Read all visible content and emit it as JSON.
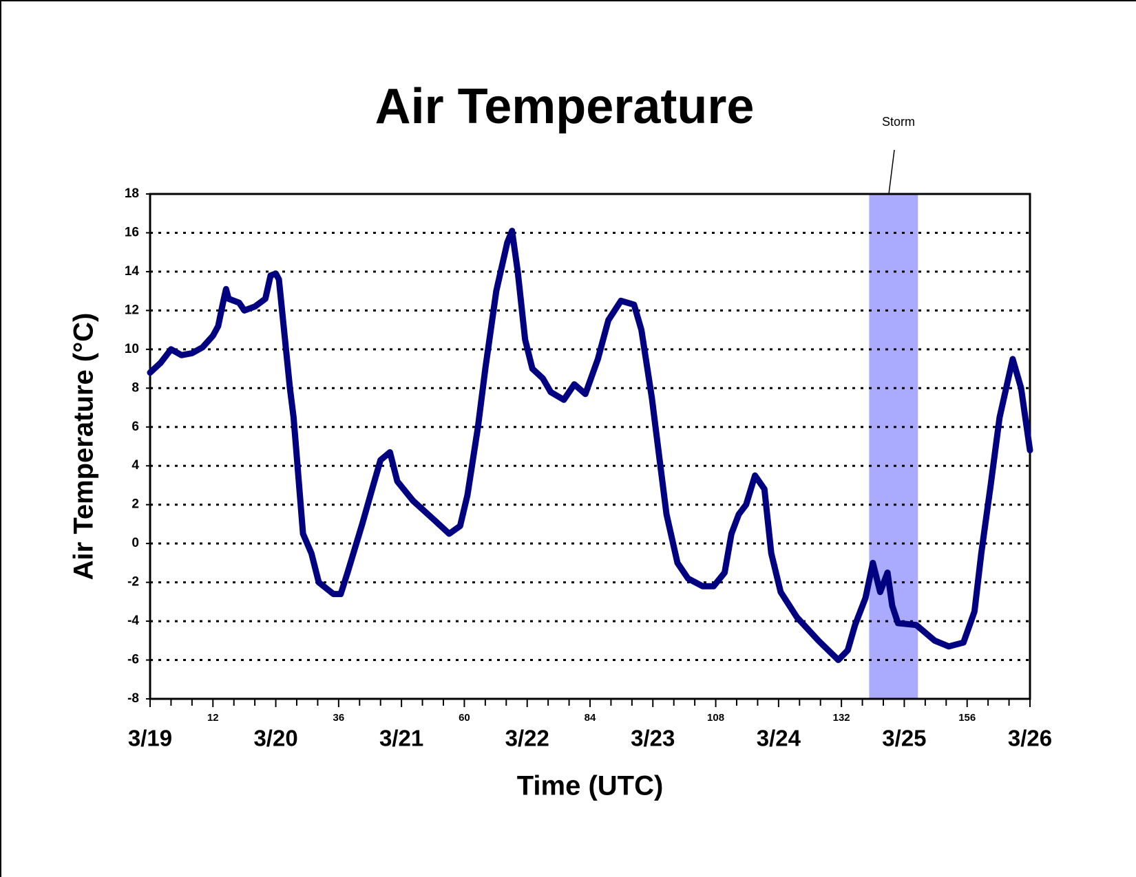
{
  "chart_data": {
    "type": "line",
    "title": "Air Temperature",
    "xlabel": "Time (UTC)",
    "ylabel": "Air Temperature (°C)",
    "color": "#000080",
    "x": [
      0,
      2,
      4,
      6,
      8,
      10,
      12,
      13,
      14,
      14.5,
      15,
      17,
      18,
      20,
      22,
      23,
      24,
      24.6,
      26.7,
      27.4,
      28,
      29.2,
      30.8,
      32.2,
      35,
      36.4,
      37.7,
      40.5,
      42.6,
      44,
      45.8,
      47.2,
      50.2,
      54.3,
      57.1,
      59.2,
      60.6,
      62.6,
      64,
      66.1,
      68.2,
      69.1,
      70.2,
      71.6,
      73,
      75,
      76.5,
      79,
      81,
      83.1,
      85.5,
      87.5,
      89.9,
      92.4,
      93.8,
      95.8,
      97.2,
      98.6,
      100.7,
      102.7,
      105.5,
      107.6,
      109.7,
      111,
      112.4,
      113.8,
      115.5,
      117.3,
      118.6,
      120.4,
      123.5,
      127.6,
      131.4,
      133.2,
      134.6,
      136.6,
      138,
      139.4,
      140.8,
      141.7,
      142.8,
      146.3,
      149.8,
      152.5,
      155.3,
      157.4,
      158.7,
      160.5,
      162.2,
      164.7,
      166.3,
      168
    ],
    "values": [
      8.8,
      9.3,
      10.0,
      9.7,
      9.8,
      10.1,
      10.7,
      11.2,
      12.5,
      13.1,
      12.6,
      12.4,
      12.0,
      12.2,
      12.6,
      13.8,
      13.9,
      13.6,
      8,
      6.5,
      4.5,
      0.5,
      -0.5,
      -2,
      -2.6,
      -2.6,
      -1.5,
      1,
      3,
      4.3,
      4.7,
      3.2,
      2.2,
      1.2,
      0.5,
      0.9,
      2.5,
      6,
      9,
      13,
      15.5,
      16.1,
      14,
      10.5,
      9,
      8.5,
      7.8,
      7.4,
      8.2,
      7.7,
      9.5,
      11.5,
      12.5,
      12.3,
      11,
      7.5,
      4.5,
      1.5,
      -1,
      -1.8,
      -2.2,
      -2.2,
      -1.5,
      0.5,
      1.5,
      2,
      3.5,
      2.8,
      -0.5,
      -2.5,
      -3.8,
      -5,
      -6,
      -5.5,
      -4.2,
      -2.8,
      -1,
      -2.5,
      -1.5,
      -3.2,
      -4.1,
      -4.2,
      -5,
      -5.3,
      -5.1,
      -3.5,
      -0.5,
      3,
      6.5,
      9.5,
      8,
      4.8
    ],
    "xlim": [
      0,
      168
    ],
    "xticks": [
      {
        "value": 0,
        "label": "3/19"
      },
      {
        "value": 24,
        "label": "3/20"
      },
      {
        "value": 48,
        "label": "3/21"
      },
      {
        "value": 72,
        "label": "3/22"
      },
      {
        "value": 96,
        "label": "3/23"
      },
      {
        "value": 120,
        "label": "3/24"
      },
      {
        "value": 144,
        "label": "3/25"
      },
      {
        "value": 168,
        "label": "3/26"
      }
    ],
    "xticks_minor": [
      12,
      36,
      60,
      84,
      108,
      132,
      156
    ],
    "xticks_unlabeled": [
      4,
      8,
      16,
      20,
      28,
      32,
      40,
      44,
      52,
      56,
      64,
      68,
      76,
      80,
      88,
      92,
      100,
      104,
      112,
      116,
      124,
      128,
      136,
      140,
      148,
      152,
      160,
      164
    ],
    "ylim": [
      -8,
      18
    ],
    "yticks": [
      -8,
      -6,
      -4,
      -2,
      0,
      2,
      4,
      6,
      8,
      10,
      12,
      14,
      16,
      18
    ],
    "grid": true,
    "shaded_region": {
      "label": "Storm",
      "x": [
        137.3,
        146.6
      ],
      "color": "#aaaaff"
    }
  }
}
